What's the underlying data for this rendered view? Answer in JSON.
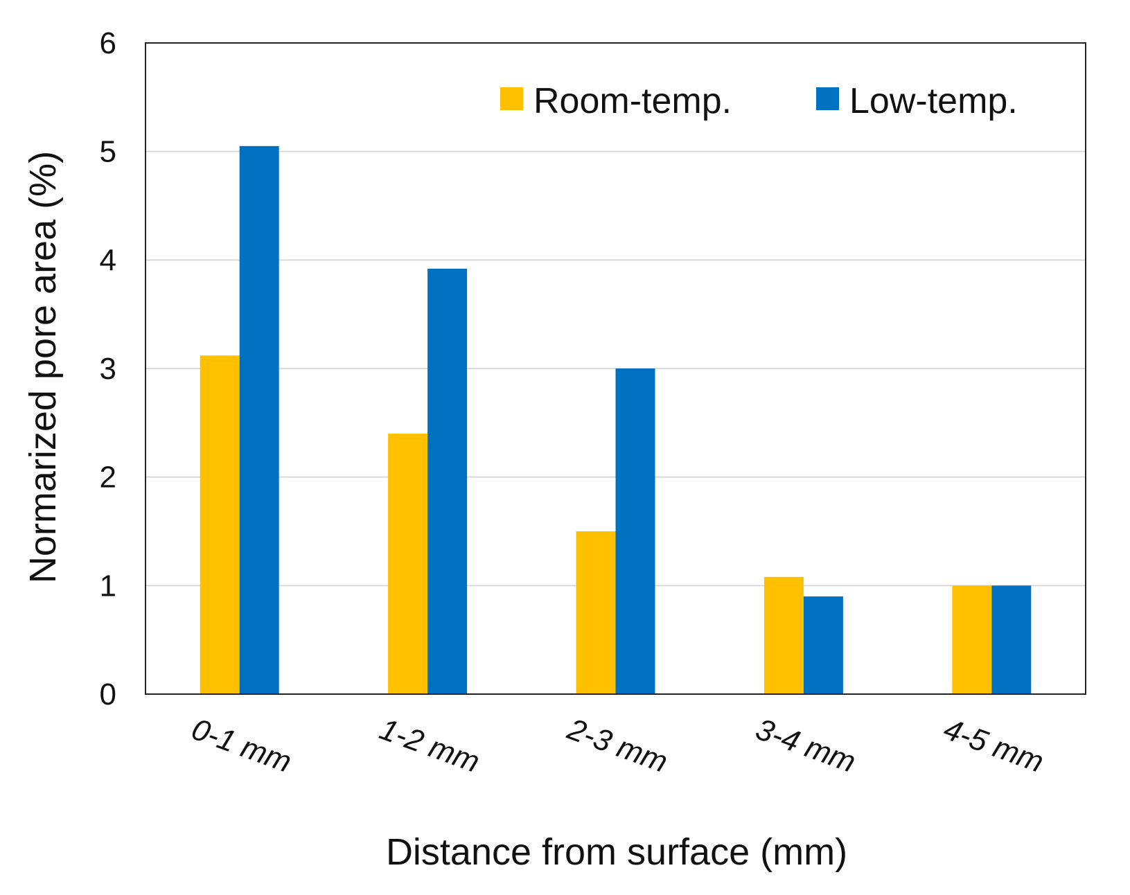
{
  "chart_data": {
    "type": "bar",
    "title": "",
    "xlabel": "Distance from surface (mm)",
    "ylabel": "Normarized pore area (%)",
    "ylim": [
      0,
      6
    ],
    "yticks": [
      "0",
      "1",
      "2",
      "3",
      "4",
      "5",
      "6"
    ],
    "grid": true,
    "legend_position": "top-right",
    "categories": [
      "0-1 mm",
      "1-2 mm",
      "2-3 mm",
      "3-4 mm",
      "4-5 mm"
    ],
    "series": [
      {
        "name": "Room-temp.",
        "color": "#FFC000",
        "values": [
          3.12,
          2.4,
          1.5,
          1.08,
          1.0
        ]
      },
      {
        "name": "Low-temp.",
        "color": "#0070C0",
        "values": [
          5.05,
          3.92,
          3.0,
          0.9,
          1.0
        ]
      }
    ]
  }
}
